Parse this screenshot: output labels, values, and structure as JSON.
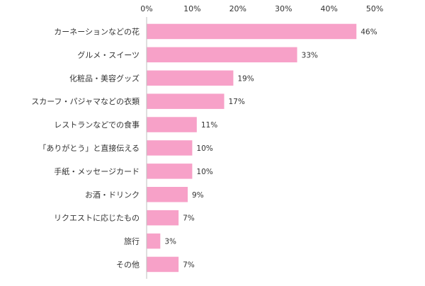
{
  "chart_data": {
    "type": "bar",
    "orientation": "horizontal",
    "categories": [
      "カーネーションなどの花",
      "グルメ・スイーツ",
      "化粧品・美容グッズ",
      "スカーフ・パジャマなどの衣類",
      "レストランなどでの食事",
      "「ありがとう」と直接伝える",
      "手紙・メッセージカード",
      "お酒・ドリンク",
      "リクエストに応じたもの",
      "旅行",
      "その他"
    ],
    "values": [
      46,
      33,
      19,
      17,
      11,
      10,
      10,
      9,
      7,
      3,
      7
    ],
    "value_labels": [
      "46%",
      "33%",
      "19%",
      "17%",
      "11%",
      "10%",
      "10%",
      "9%",
      "7%",
      "3%",
      "7%"
    ],
    "x_ticks": [
      0,
      10,
      20,
      30,
      40,
      50
    ],
    "x_tick_labels": [
      "0%",
      "10%",
      "20%",
      "30%",
      "40%",
      "50%"
    ],
    "xlim": [
      0,
      50
    ],
    "axis_position": "top",
    "grid": false,
    "legend": "none",
    "bar_color": "#f7a1c8",
    "axis_color": "#bfbfbf"
  }
}
